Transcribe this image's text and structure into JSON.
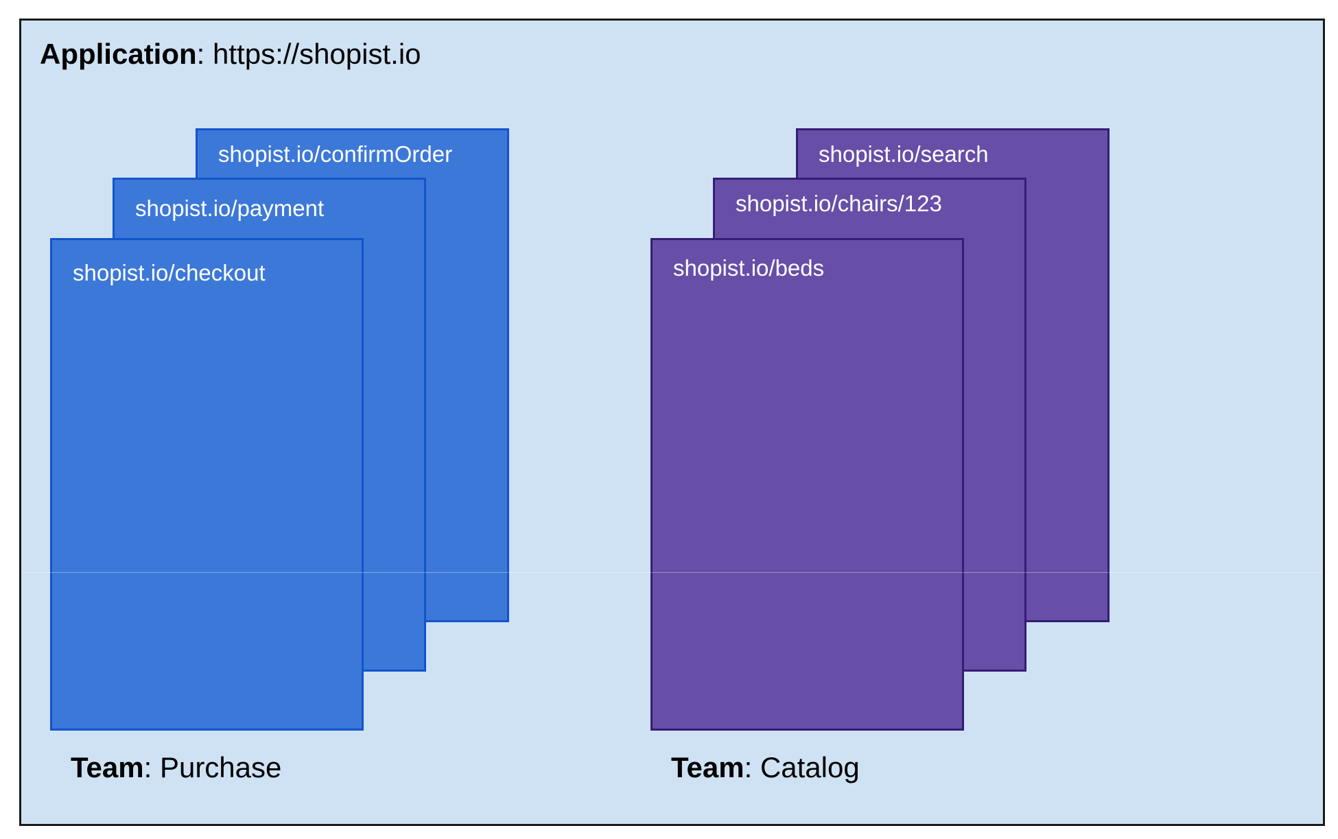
{
  "application": {
    "label": "Application",
    "separator": ": ",
    "url": "https://shopist.io"
  },
  "teams": [
    {
      "label": "Team",
      "separator": ": ",
      "name": "Purchase",
      "color": "#3c78d8",
      "border_color": "#1155cc",
      "pages": [
        "shopist.io/confirmOrder",
        "shopist.io/payment",
        "shopist.io/checkout"
      ]
    },
    {
      "label": "Team",
      "separator": ": ",
      "name": "Catalog",
      "color": "#674ea7",
      "border_color": "#351c75",
      "pages": [
        "shopist.io/search",
        "shopist.io/chairs/123",
        "shopist.io/beds"
      ]
    }
  ],
  "colors": {
    "application_background": "#cfe2f3",
    "frame_border": "#1a1a1a"
  }
}
